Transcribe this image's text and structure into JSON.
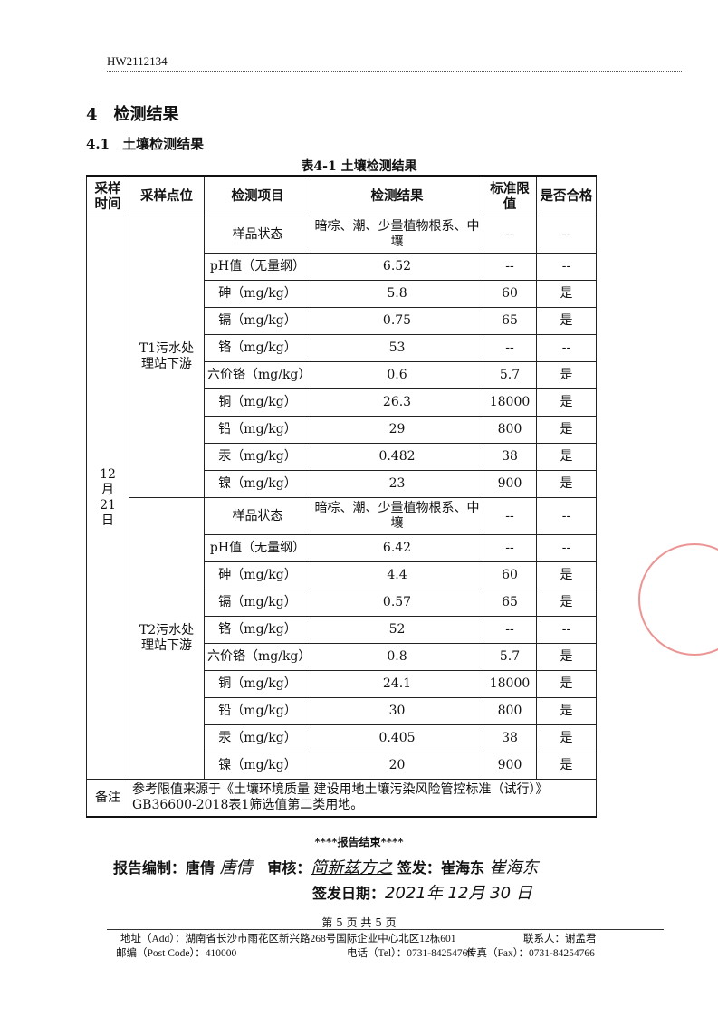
{
  "doc_number": "HW2112134",
  "section": {
    "num": "4",
    "title": "检测结果"
  },
  "subsection": {
    "num": "4.1",
    "title": "土壤检测结果"
  },
  "table_caption": "表4-1  土壤检测结果",
  "table": {
    "headers": [
      "采样时间",
      "采样点位",
      "检测项目",
      "检测结果",
      "标准限值",
      "是否合格"
    ],
    "date": "12月21日",
    "groups": [
      {
        "site": "T1污水处理站下游",
        "rows": [
          [
            "样品状态",
            "暗棕、潮、少量植物根系、中壤",
            "--",
            "--"
          ],
          [
            "pH值（无量纲）",
            "6.52",
            "--",
            "--"
          ],
          [
            "砷（mg/kg）",
            "5.8",
            "60",
            "是"
          ],
          [
            "镉（mg/kg）",
            "0.75",
            "65",
            "是"
          ],
          [
            "铬（mg/kg）",
            "53",
            "--",
            "--"
          ],
          [
            "六价铬（mg/kg）",
            "0.6",
            "5.7",
            "是"
          ],
          [
            "铜（mg/kg）",
            "26.3",
            "18000",
            "是"
          ],
          [
            "铅（mg/kg）",
            "29",
            "800",
            "是"
          ],
          [
            "汞（mg/kg）",
            "0.482",
            "38",
            "是"
          ],
          [
            "镍（mg/kg）",
            "23",
            "900",
            "是"
          ]
        ]
      },
      {
        "site": "T2污水处理站下游",
        "rows": [
          [
            "样品状态",
            "暗棕、潮、少量植物根系、中壤",
            "--",
            "--"
          ],
          [
            "pH值（无量纲）",
            "6.42",
            "--",
            "--"
          ],
          [
            "砷（mg/kg）",
            "4.4",
            "60",
            "是"
          ],
          [
            "镉（mg/kg）",
            "0.57",
            "65",
            "是"
          ],
          [
            "铬（mg/kg）",
            "52",
            "--",
            "--"
          ],
          [
            "六价铬（mg/kg）",
            "0.8",
            "5.7",
            "是"
          ],
          [
            "铜（mg/kg）",
            "24.1",
            "18000",
            "是"
          ],
          [
            "铅（mg/kg）",
            "30",
            "800",
            "是"
          ],
          [
            "汞（mg/kg）",
            "0.405",
            "38",
            "是"
          ],
          [
            "镍（mg/kg）",
            "20",
            "900",
            "是"
          ]
        ]
      }
    ],
    "remark_label": "备注",
    "remark": "参考限值来源于《土壤环境质量 建设用地土壤污染风险管控标准（试行）》GB36600-2018表1筛选值第二类用地。"
  },
  "end_marker": "****报告结束****",
  "signatures": {
    "compiler_label": "报告编制：",
    "compiler": "唐倩",
    "compiler_sig": "唐倩",
    "reviewer_label": "审核：",
    "reviewer_sig": "简新兹方之",
    "issuer_label": "签发：",
    "issuer": "崔海东",
    "issuer_sig": "崔海东",
    "date_label": "签发日期：",
    "date_sig": "2021年 12月 30 日"
  },
  "page_info": "第 5 页 共 5 页",
  "footer": {
    "address": "地址（Add）：湖南省长沙市雨花区新兴路268号国际企业中心北区12栋601",
    "contact": "联系人：谢孟君",
    "postcode": "邮编（Post Code）：410000",
    "tel": "电话（Tel）：0731-84254766",
    "fax": "传真（Fax）：0731-84254766"
  }
}
